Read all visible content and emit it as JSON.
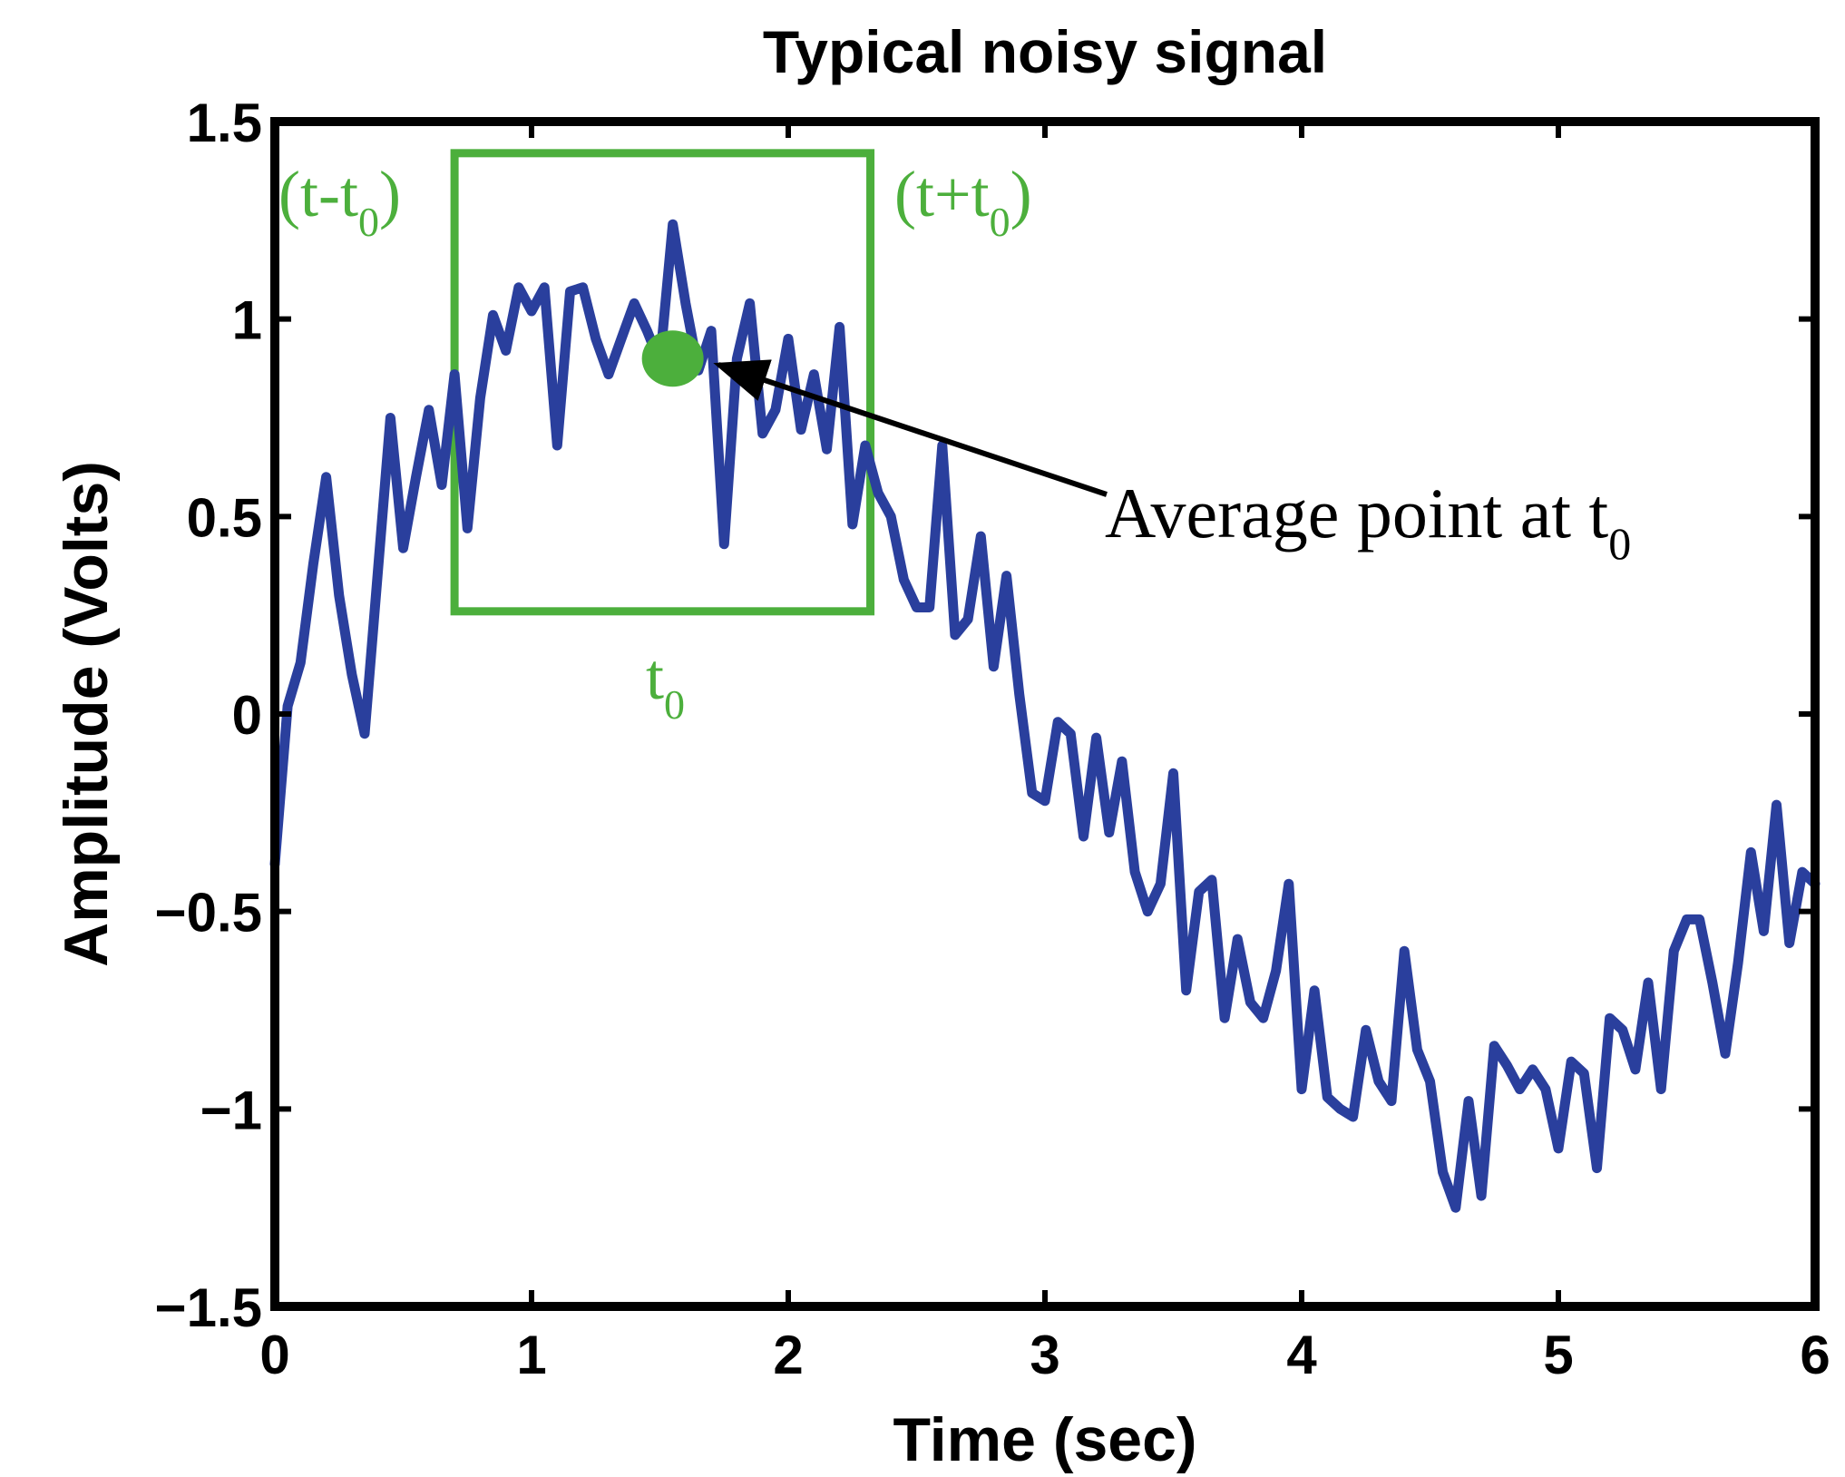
{
  "chart_data": {
    "type": "line",
    "title": "Typical noisy signal",
    "xlabel": "Time (sec)",
    "ylabel": "Amplitude (Volts)",
    "xlim": [
      0,
      6
    ],
    "ylim": [
      -1.5,
      1.5
    ],
    "xticks": [
      0,
      1,
      2,
      3,
      4,
      5,
      6
    ],
    "xtick_labels": [
      "0",
      "1",
      "2",
      "3",
      "4",
      "5",
      "6"
    ],
    "yticks": [
      -1.5,
      -1,
      -0.5,
      0,
      0.5,
      1,
      1.5
    ],
    "ytick_labels": [
      "−1.5",
      "−1",
      "−0.5",
      "0",
      "0.5",
      "1",
      "1.5"
    ],
    "grid": false,
    "series": [
      {
        "color": "#2a3f9d",
        "x": [
          0,
          0.05,
          0.1,
          0.15,
          0.2,
          0.25,
          0.3,
          0.35,
          0.4,
          0.45,
          0.5,
          0.55,
          0.6,
          0.65,
          0.7,
          0.75,
          0.8,
          0.85,
          0.9,
          0.95,
          1,
          1.05,
          1.1,
          1.15,
          1.2,
          1.25,
          1.3,
          1.35,
          1.4,
          1.45,
          1.5,
          1.55,
          1.6,
          1.65,
          1.7,
          1.75,
          1.8,
          1.85,
          1.9,
          1.95,
          2,
          2.05,
          2.1,
          2.15,
          2.2,
          2.25,
          2.3,
          2.35,
          2.4,
          2.45,
          2.5,
          2.55,
          2.6,
          2.65,
          2.7,
          2.75,
          2.8,
          2.85,
          2.9,
          2.95,
          3,
          3.05,
          3.1,
          3.15,
          3.2,
          3.25,
          3.3,
          3.35,
          3.4,
          3.45,
          3.5,
          3.55,
          3.6,
          3.65,
          3.7,
          3.75,
          3.8,
          3.85,
          3.9,
          3.95,
          4,
          4.05,
          4.1,
          4.15,
          4.2,
          4.25,
          4.3,
          4.35,
          4.4,
          4.45,
          4.5,
          4.55,
          4.6,
          4.65,
          4.7,
          4.75,
          4.8,
          4.85,
          4.9,
          4.95,
          5,
          5.05,
          5.1,
          5.15,
          5.2,
          5.25,
          5.3,
          5.35,
          5.4,
          5.45,
          5.5,
          5.55,
          5.6,
          5.65,
          5.7,
          5.75,
          5.8,
          5.85,
          5.9,
          5.95,
          6
        ],
        "y": [
          -0.38,
          0.02,
          0.13,
          0.38,
          0.6,
          0.3,
          0.1,
          -0.05,
          0.35,
          0.75,
          0.42,
          0.6,
          0.77,
          0.58,
          0.86,
          0.47,
          0.8,
          1.01,
          0.92,
          1.08,
          1.02,
          1.08,
          0.68,
          1.07,
          1.08,
          0.95,
          0.86,
          0.95,
          1.04,
          0.97,
          0.89,
          1.24,
          1.04,
          0.87,
          0.97,
          0.43,
          0.9,
          1.04,
          0.71,
          0.77,
          0.95,
          0.72,
          0.86,
          0.67,
          0.98,
          0.48,
          0.68,
          0.56,
          0.5,
          0.34,
          0.27,
          0.27,
          0.68,
          0.2,
          0.24,
          0.45,
          0.12,
          0.35,
          0.05,
          -0.2,
          -0.22,
          -0.02,
          -0.05,
          -0.31,
          -0.06,
          -0.3,
          -0.12,
          -0.4,
          -0.5,
          -0.43,
          -0.15,
          -0.7,
          -0.45,
          -0.42,
          -0.77,
          -0.57,
          -0.73,
          -0.77,
          -0.65,
          -0.43,
          -0.95,
          -0.7,
          -0.97,
          -1.0,
          -1.02,
          -0.8,
          -0.93,
          -0.98,
          -0.6,
          -0.85,
          -0.93,
          -1.16,
          -1.25,
          -0.98,
          -1.22,
          -0.84,
          -0.89,
          -0.95,
          -0.9,
          -0.95,
          -1.1,
          -0.88,
          -0.91,
          -1.15,
          -0.77,
          -0.8,
          -0.9,
          -0.68,
          -0.95,
          -0.6,
          -0.52,
          -0.52,
          -0.68,
          -0.86,
          -0.63,
          -0.35,
          -0.55,
          -0.23,
          -0.58,
          -0.4,
          -0.43
        ]
      }
    ],
    "window_box": {
      "x": [
        0.7,
        2.32
      ],
      "y": [
        0.26,
        1.42
      ],
      "color": "#4caf3c"
    },
    "average_point": {
      "x": 1.55,
      "y": 0.9,
      "color": "#4caf3c"
    },
    "annotations": {
      "left_bound": {
        "pre": "(t-t",
        "sub": "0",
        "post": ")"
      },
      "right_bound": {
        "pre": "(t+t",
        "sub": "0",
        "post": ")"
      },
      "center": {
        "pre": "t",
        "sub": "0"
      },
      "arrow_label": {
        "pre": "Average point at t",
        "sub": "0"
      }
    }
  }
}
